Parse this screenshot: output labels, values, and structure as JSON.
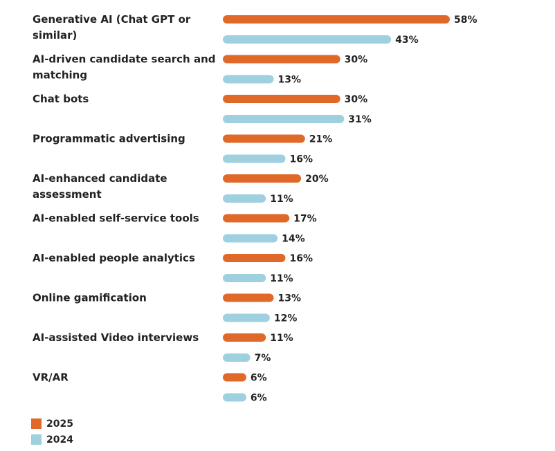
{
  "chart_data": {
    "type": "bar",
    "orientation": "horizontal",
    "categories": [
      "Generative AI (Chat GPT or similar)",
      "AI-driven candidate search and matching",
      "Chat bots",
      "Programmatic advertising",
      "AI-enhanced candidate assessment",
      "AI-enabled  self-service tools",
      "AI-enabled people analytics",
      "Online gamification",
      "AI-assisted Video interviews",
      "VR/AR"
    ],
    "category_lines": [
      [
        "Generative AI (Chat GPT or",
        "similar)"
      ],
      [
        "AI-driven candidate search and",
        "matching"
      ],
      [
        "Chat bots"
      ],
      [
        "Programmatic advertising"
      ],
      [
        "AI-enhanced candidate",
        "assessment"
      ],
      [
        "AI-enabled  self-service tools"
      ],
      [
        "AI-enabled people analytics"
      ],
      [
        "Online gamification"
      ],
      [
        "AI-assisted Video interviews"
      ],
      [
        "VR/AR"
      ]
    ],
    "series": [
      {
        "name": "2025",
        "color": "#e0692a",
        "values": [
          58,
          30,
          30,
          21,
          20,
          17,
          16,
          13,
          11,
          6
        ]
      },
      {
        "name": "2024",
        "color": "#9ed0e0",
        "values": [
          43,
          13,
          31,
          16,
          11,
          14,
          11,
          12,
          7,
          6
        ]
      }
    ],
    "value_suffix": "%",
    "title": "",
    "xlabel": "",
    "ylabel": "",
    "xlim": [
      0,
      58
    ],
    "grid": false,
    "legend_position": "bottom-left"
  }
}
